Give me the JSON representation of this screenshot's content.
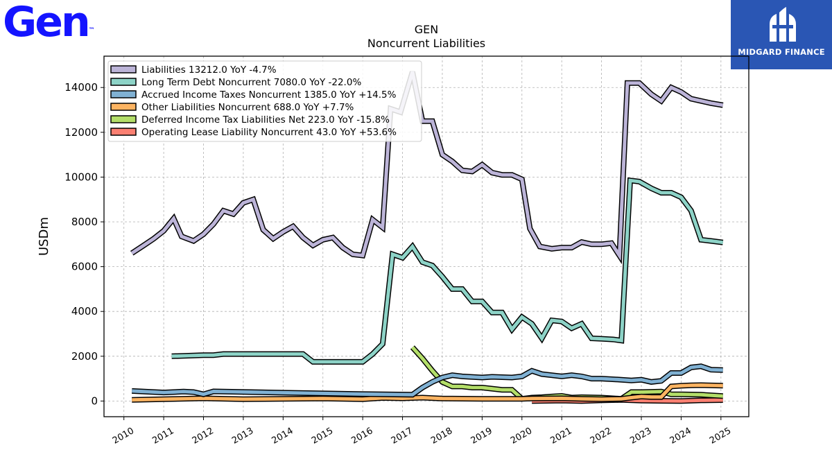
{
  "brand": {
    "logo_text": "Gen",
    "logo_mark": "™",
    "partner": "MIDGARD FINANCE"
  },
  "chart_data": {
    "type": "line",
    "title": "GEN",
    "subtitle": "Noncurrent  Liabilities",
    "ylabel": "USDm",
    "xlabel": "",
    "xlim": [
      2009.5,
      2025.7
    ],
    "ylim": [
      -700,
      15400
    ],
    "yticks": [
      0,
      2000,
      4000,
      6000,
      8000,
      10000,
      12000,
      14000
    ],
    "xticks": [
      "2010",
      "2011",
      "2012",
      "2013",
      "2014",
      "2015",
      "2016",
      "2017",
      "2018",
      "2019",
      "2020",
      "2021",
      "2022",
      "2023",
      "2024",
      "2025"
    ],
    "grid": true,
    "legend_position": "top-left",
    "series": [
      {
        "name": "Liabilities  13212.0 YoY -4.7%",
        "color": "#bcb4d8",
        "points": [
          [
            2010.2,
            6600
          ],
          [
            2010.5,
            6950
          ],
          [
            2010.75,
            7250
          ],
          [
            2011.0,
            7600
          ],
          [
            2011.25,
            8150
          ],
          [
            2011.45,
            7350
          ],
          [
            2011.75,
            7150
          ],
          [
            2012.0,
            7450
          ],
          [
            2012.25,
            7900
          ],
          [
            2012.5,
            8500
          ],
          [
            2012.75,
            8350
          ],
          [
            2013.0,
            8850
          ],
          [
            2013.25,
            9000
          ],
          [
            2013.5,
            7650
          ],
          [
            2013.75,
            7250
          ],
          [
            2014.0,
            7550
          ],
          [
            2014.25,
            7800
          ],
          [
            2014.5,
            7300
          ],
          [
            2014.75,
            6950
          ],
          [
            2015.0,
            7200
          ],
          [
            2015.25,
            7300
          ],
          [
            2015.5,
            6850
          ],
          [
            2015.75,
            6550
          ],
          [
            2016.0,
            6500
          ],
          [
            2016.25,
            8100
          ],
          [
            2016.5,
            7750
          ],
          [
            2016.7,
            13050
          ],
          [
            2016.95,
            12900
          ],
          [
            2017.25,
            14700
          ],
          [
            2017.5,
            12500
          ],
          [
            2017.75,
            12500
          ],
          [
            2018.0,
            11000
          ],
          [
            2018.25,
            10700
          ],
          [
            2018.5,
            10300
          ],
          [
            2018.75,
            10250
          ],
          [
            2019.0,
            10550
          ],
          [
            2019.25,
            10200
          ],
          [
            2019.5,
            10100
          ],
          [
            2019.75,
            10100
          ],
          [
            2020.0,
            9900
          ],
          [
            2020.2,
            7700
          ],
          [
            2020.45,
            6900
          ],
          [
            2020.75,
            6800
          ],
          [
            2021.0,
            6850
          ],
          [
            2021.25,
            6850
          ],
          [
            2021.5,
            7100
          ],
          [
            2021.75,
            7000
          ],
          [
            2022.0,
            7000
          ],
          [
            2022.25,
            7050
          ],
          [
            2022.45,
            6500
          ],
          [
            2022.65,
            14200
          ],
          [
            2022.95,
            14200
          ],
          [
            2023.25,
            13700
          ],
          [
            2023.5,
            13400
          ],
          [
            2023.75,
            14000
          ],
          [
            2024.0,
            13800
          ],
          [
            2024.25,
            13500
          ],
          [
            2024.5,
            13400
          ],
          [
            2024.75,
            13300
          ],
          [
            2025.05,
            13212
          ]
        ]
      },
      {
        "name": "Long Term Debt Noncurrent  7080.0 YoY -22.0%",
        "color": "#8dd3c7",
        "points": [
          [
            2011.2,
            2000
          ],
          [
            2012.0,
            2050
          ],
          [
            2012.25,
            2050
          ],
          [
            2012.5,
            2100
          ],
          [
            2013.0,
            2100
          ],
          [
            2014.5,
            2100
          ],
          [
            2014.75,
            1750
          ],
          [
            2015.0,
            1750
          ],
          [
            2016.0,
            1750
          ],
          [
            2016.25,
            2100
          ],
          [
            2016.5,
            2550
          ],
          [
            2016.75,
            6550
          ],
          [
            2017.0,
            6400
          ],
          [
            2017.25,
            6900
          ],
          [
            2017.5,
            6200
          ],
          [
            2017.75,
            6050
          ],
          [
            2018.0,
            5550
          ],
          [
            2018.25,
            5000
          ],
          [
            2018.5,
            5000
          ],
          [
            2018.75,
            4450
          ],
          [
            2019.0,
            4450
          ],
          [
            2019.25,
            3950
          ],
          [
            2019.5,
            3950
          ],
          [
            2019.75,
            3200
          ],
          [
            2020.0,
            3750
          ],
          [
            2020.25,
            3450
          ],
          [
            2020.5,
            2800
          ],
          [
            2020.75,
            3600
          ],
          [
            2021.0,
            3550
          ],
          [
            2021.25,
            3250
          ],
          [
            2021.5,
            3450
          ],
          [
            2021.75,
            2800
          ],
          [
            2022.0,
            2780
          ],
          [
            2022.3,
            2750
          ],
          [
            2022.5,
            2700
          ],
          [
            2022.72,
            9850
          ],
          [
            2022.95,
            9800
          ],
          [
            2023.25,
            9500
          ],
          [
            2023.5,
            9300
          ],
          [
            2023.75,
            9300
          ],
          [
            2024.0,
            9100
          ],
          [
            2024.25,
            8500
          ],
          [
            2024.5,
            7200
          ],
          [
            2024.75,
            7150
          ],
          [
            2025.05,
            7080
          ]
        ]
      },
      {
        "name": "Accrued Income Taxes Noncurrent  1385.0 YoY +14.5%",
        "color": "#80b1d3",
        "points": [
          [
            2010.2,
            450
          ],
          [
            2011.0,
            380
          ],
          [
            2011.5,
            420
          ],
          [
            2011.75,
            400
          ],
          [
            2012.0,
            300
          ],
          [
            2012.25,
            430
          ],
          [
            2014.0,
            370
          ],
          [
            2016.0,
            310
          ],
          [
            2017.25,
            280
          ],
          [
            2017.5,
            600
          ],
          [
            2017.75,
            850
          ],
          [
            2018.0,
            1050
          ],
          [
            2018.25,
            1150
          ],
          [
            2018.5,
            1100
          ],
          [
            2019.0,
            1050
          ],
          [
            2019.25,
            1080
          ],
          [
            2019.75,
            1050
          ],
          [
            2020.0,
            1100
          ],
          [
            2020.25,
            1350
          ],
          [
            2020.5,
            1200
          ],
          [
            2020.75,
            1150
          ],
          [
            2021.0,
            1100
          ],
          [
            2021.25,
            1150
          ],
          [
            2021.5,
            1100
          ],
          [
            2021.75,
            1000
          ],
          [
            2022.0,
            1000
          ],
          [
            2022.5,
            950
          ],
          [
            2022.75,
            920
          ],
          [
            2023.0,
            950
          ],
          [
            2023.25,
            850
          ],
          [
            2023.5,
            900
          ],
          [
            2023.75,
            1250
          ],
          [
            2024.0,
            1250
          ],
          [
            2024.25,
            1500
          ],
          [
            2024.5,
            1550
          ],
          [
            2024.75,
            1400
          ],
          [
            2025.05,
            1385
          ]
        ]
      },
      {
        "name": "Other Liabilities Noncurrent  688.0 YoY +7.7%",
        "color": "#fdb462",
        "points": [
          [
            2010.2,
            50
          ],
          [
            2011.0,
            80
          ],
          [
            2012.0,
            120
          ],
          [
            2013.0,
            80
          ],
          [
            2014.0,
            100
          ],
          [
            2015.0,
            110
          ],
          [
            2016.0,
            80
          ],
          [
            2016.5,
            140
          ],
          [
            2017.0,
            120
          ],
          [
            2017.5,
            150
          ],
          [
            2018.0,
            110
          ],
          [
            2019.0,
            100
          ],
          [
            2020.0,
            100
          ],
          [
            2020.25,
            110
          ],
          [
            2021.0,
            120
          ],
          [
            2021.5,
            100
          ],
          [
            2022.0,
            80
          ],
          [
            2022.5,
            100
          ],
          [
            2022.75,
            150
          ],
          [
            2023.0,
            200
          ],
          [
            2023.25,
            180
          ],
          [
            2023.5,
            180
          ],
          [
            2023.75,
            650
          ],
          [
            2024.0,
            680
          ],
          [
            2024.25,
            700
          ],
          [
            2024.5,
            710
          ],
          [
            2025.05,
            688
          ]
        ]
      },
      {
        "name": "Deferred Income Tax Liabilities Net  223.0 YoY -15.8%",
        "color": "#b3de69",
        "points": [
          [
            2017.25,
            2400
          ],
          [
            2017.5,
            1900
          ],
          [
            2017.75,
            1350
          ],
          [
            2018.0,
            850
          ],
          [
            2018.25,
            650
          ],
          [
            2018.5,
            650
          ],
          [
            2018.75,
            600
          ],
          [
            2019.0,
            600
          ],
          [
            2019.25,
            550
          ],
          [
            2019.5,
            500
          ],
          [
            2019.75,
            500
          ],
          [
            2020.0,
            100
          ],
          [
            2020.25,
            150
          ],
          [
            2020.5,
            170
          ],
          [
            2020.75,
            200
          ],
          [
            2021.0,
            230
          ],
          [
            2021.25,
            150
          ],
          [
            2021.5,
            170
          ],
          [
            2022.0,
            150
          ],
          [
            2022.5,
            100
          ],
          [
            2022.75,
            400
          ],
          [
            2023.0,
            400
          ],
          [
            2023.5,
            420
          ],
          [
            2023.75,
            300
          ],
          [
            2024.0,
            300
          ],
          [
            2024.5,
            280
          ],
          [
            2025.05,
            223
          ]
        ]
      },
      {
        "name": "Operating Lease Liability Noncurrent  43.0 YoY +53.6%",
        "color": "#fb8072",
        "points": [
          [
            2020.25,
            0
          ],
          [
            2021.0,
            20
          ],
          [
            2021.5,
            0
          ],
          [
            2022.0,
            30
          ],
          [
            2022.5,
            50
          ],
          [
            2023.0,
            20
          ],
          [
            2023.5,
            10
          ],
          [
            2024.0,
            0
          ],
          [
            2024.5,
            30
          ],
          [
            2025.05,
            43
          ]
        ]
      }
    ]
  }
}
